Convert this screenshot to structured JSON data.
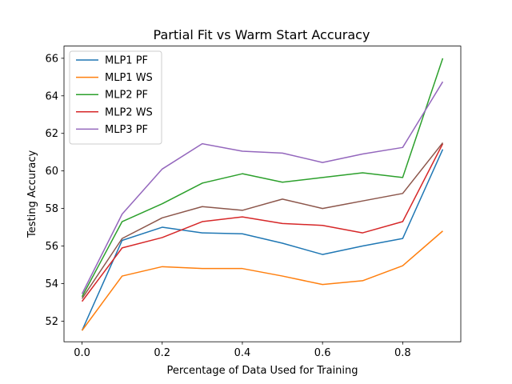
{
  "chart_data": {
    "type": "line",
    "title": "Partial Fit vs Warm Start Accuracy",
    "xlabel": "Percentage of Data Used for Training",
    "ylabel": "Testing Accuracy",
    "xlim": [
      -0.045,
      0.945
    ],
    "ylim": [
      50.9,
      66.65
    ],
    "xticks": [
      0.0,
      0.2,
      0.4,
      0.6,
      0.8
    ],
    "xtick_labels": [
      "0.0",
      "0.2",
      "0.4",
      "0.6",
      "0.8"
    ],
    "yticks": [
      52,
      54,
      56,
      58,
      60,
      62,
      64,
      66
    ],
    "ytick_labels": [
      "52",
      "54",
      "56",
      "58",
      "60",
      "62",
      "64",
      "66"
    ],
    "grid": false,
    "legend_position": "top-left",
    "x": [
      0.0,
      0.1,
      0.2,
      0.3,
      0.4,
      0.5,
      0.6,
      0.7,
      0.8,
      0.9
    ],
    "series": [
      {
        "name": "MLP1 PF",
        "color": "#1f77b4",
        "in_legend": true,
        "values": [
          51.5,
          56.3,
          57.0,
          56.7,
          56.65,
          56.15,
          55.55,
          56.0,
          56.4,
          61.15
        ]
      },
      {
        "name": "MLP1 WS",
        "color": "#ff7f0e",
        "in_legend": true,
        "values": [
          51.5,
          54.4,
          54.9,
          54.8,
          54.8,
          54.4,
          53.95,
          54.15,
          54.95,
          56.8
        ]
      },
      {
        "name": "MLP2 PF",
        "color": "#2ca02c",
        "in_legend": true,
        "values": [
          53.3,
          57.3,
          58.25,
          59.35,
          59.85,
          59.4,
          59.65,
          59.9,
          59.65,
          66.0
        ]
      },
      {
        "name": "MLP2 WS",
        "color": "#d62728",
        "in_legend": true,
        "values": [
          53.05,
          55.9,
          56.45,
          57.3,
          57.55,
          57.2,
          57.1,
          56.7,
          57.3,
          61.45
        ]
      },
      {
        "name": "MLP3 PF",
        "color": "#9467bd",
        "in_legend": true,
        "values": [
          53.45,
          57.7,
          60.1,
          61.45,
          61.05,
          60.95,
          60.45,
          60.9,
          61.25,
          64.75
        ]
      },
      {
        "name": "",
        "color": "#8c564b",
        "in_legend": false,
        "values": [
          53.2,
          56.4,
          57.5,
          58.1,
          57.9,
          58.5,
          58.0,
          58.4,
          58.8,
          61.5
        ]
      }
    ]
  }
}
